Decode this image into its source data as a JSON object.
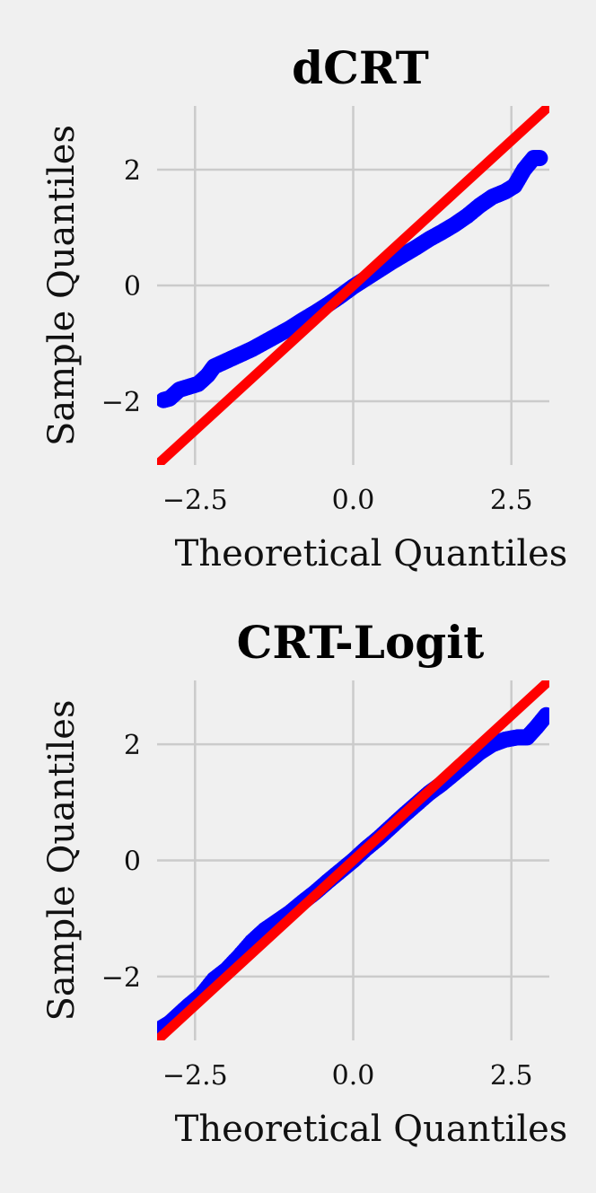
{
  "colors": {
    "background": "#f0f0f0",
    "grid": "#cbcbcb",
    "points": "#0000ff",
    "reference_line": "#ff0000"
  },
  "chart_data": [
    {
      "type": "scatter",
      "title": "dCRT",
      "xlabel": "Theoretical Quantiles",
      "ylabel": "Sample Quantiles",
      "xlim": [
        -3.1,
        3.1
      ],
      "ylim": [
        -3.1,
        3.1
      ],
      "xticks": [
        -2.5,
        0.0,
        2.5
      ],
      "xtick_labels": [
        "−2.5",
        "0.0",
        "2.5"
      ],
      "yticks": [
        -2,
        0,
        2
      ],
      "ytick_labels": [
        "−2",
        "0",
        "2"
      ],
      "grid": true,
      "reference_line": {
        "slope": 1,
        "intercept": 0
      },
      "series": [
        {
          "points": [
            [
              -3.0,
              -1.98
            ],
            [
              -2.9,
              -1.95
            ],
            [
              -2.75,
              -1.8
            ],
            [
              -2.6,
              -1.75
            ],
            [
              -2.45,
              -1.7
            ],
            [
              -2.3,
              -1.55
            ],
            [
              -2.2,
              -1.4
            ],
            [
              -2.0,
              -1.3
            ],
            [
              -1.8,
              -1.2
            ],
            [
              -1.6,
              -1.1
            ],
            [
              -1.4,
              -0.98
            ],
            [
              -1.2,
              -0.86
            ],
            [
              -1.0,
              -0.74
            ],
            [
              -0.8,
              -0.6
            ],
            [
              -0.6,
              -0.47
            ],
            [
              -0.4,
              -0.33
            ],
            [
              -0.2,
              -0.18
            ],
            [
              0.0,
              -0.02
            ],
            [
              0.2,
              0.12
            ],
            [
              0.4,
              0.26
            ],
            [
              0.6,
              0.4
            ],
            [
              0.8,
              0.53
            ],
            [
              1.0,
              0.66
            ],
            [
              1.2,
              0.8
            ],
            [
              1.4,
              0.92
            ],
            [
              1.6,
              1.05
            ],
            [
              1.8,
              1.2
            ],
            [
              2.0,
              1.38
            ],
            [
              2.2,
              1.53
            ],
            [
              2.4,
              1.62
            ],
            [
              2.55,
              1.72
            ],
            [
              2.7,
              2.0
            ],
            [
              2.85,
              2.2
            ],
            [
              2.95,
              2.2
            ]
          ]
        }
      ]
    },
    {
      "type": "scatter",
      "title": "CRT-Logit",
      "xlabel": "Theoretical Quantiles",
      "ylabel": "Sample Quantiles",
      "xlim": [
        -3.1,
        3.1
      ],
      "ylim": [
        -3.1,
        3.1
      ],
      "xticks": [
        -2.5,
        0.0,
        2.5
      ],
      "xtick_labels": [
        "−2.5",
        "0.0",
        "2.5"
      ],
      "yticks": [
        -2,
        0,
        2
      ],
      "ytick_labels": [
        "−2",
        "0",
        "2"
      ],
      "grid": true,
      "reference_line": {
        "slope": 1,
        "intercept": 0
      },
      "series": [
        {
          "points": [
            [
              -3.05,
              -2.9
            ],
            [
              -2.9,
              -2.8
            ],
            [
              -2.75,
              -2.65
            ],
            [
              -2.6,
              -2.5
            ],
            [
              -2.4,
              -2.32
            ],
            [
              -2.2,
              -2.05
            ],
            [
              -2.0,
              -1.88
            ],
            [
              -1.8,
              -1.65
            ],
            [
              -1.6,
              -1.4
            ],
            [
              -1.4,
              -1.2
            ],
            [
              -1.2,
              -1.05
            ],
            [
              -1.0,
              -0.9
            ],
            [
              -0.8,
              -0.72
            ],
            [
              -0.6,
              -0.55
            ],
            [
              -0.4,
              -0.36
            ],
            [
              -0.2,
              -0.18
            ],
            [
              0.0,
              0.0
            ],
            [
              0.2,
              0.2
            ],
            [
              0.4,
              0.38
            ],
            [
              0.6,
              0.58
            ],
            [
              0.8,
              0.78
            ],
            [
              1.0,
              0.97
            ],
            [
              1.2,
              1.16
            ],
            [
              1.4,
              1.32
            ],
            [
              1.6,
              1.5
            ],
            [
              1.8,
              1.68
            ],
            [
              2.0,
              1.86
            ],
            [
              2.2,
              2.0
            ],
            [
              2.4,
              2.08
            ],
            [
              2.6,
              2.12
            ],
            [
              2.75,
              2.12
            ],
            [
              2.9,
              2.3
            ],
            [
              3.05,
              2.5
            ]
          ]
        }
      ]
    }
  ]
}
